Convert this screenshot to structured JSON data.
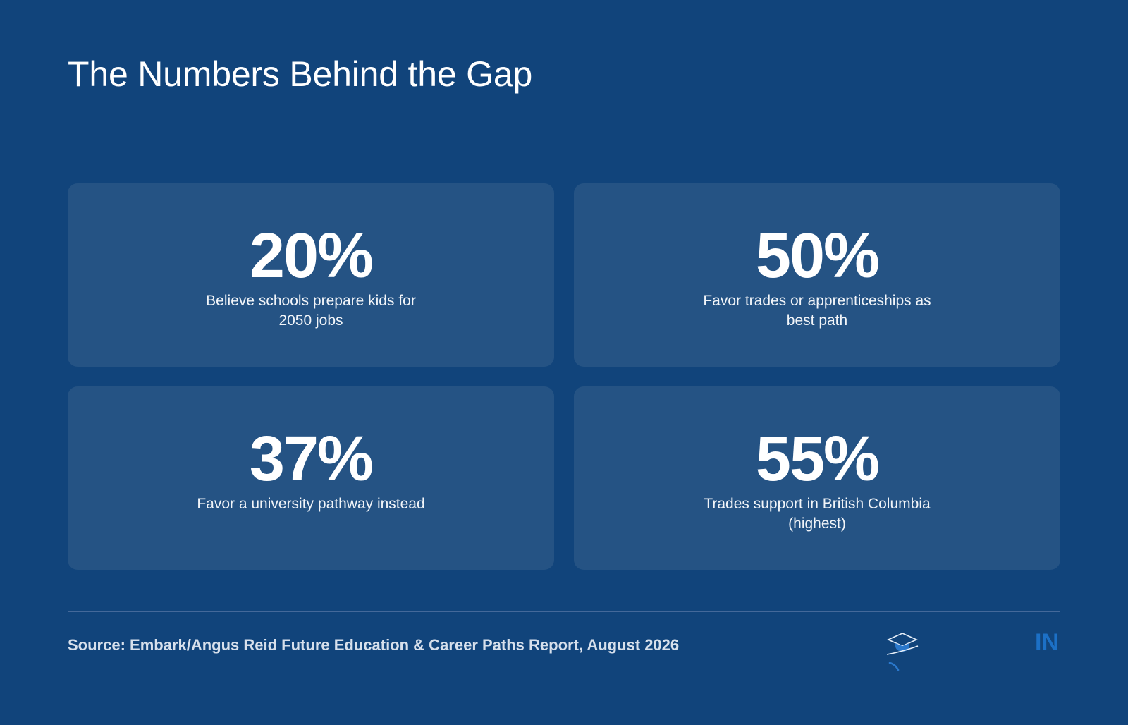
{
  "slide": {
    "title": "The Numbers Behind the Gap"
  },
  "stats": [
    {
      "value": "20%",
      "label": "Believe schools prepare kids for 2050 jobs"
    },
    {
      "value": "50%",
      "label": "Favor trades or apprenticeships as best path"
    },
    {
      "value": "37%",
      "label": "Favor a university pathway instead"
    },
    {
      "value": "55%",
      "label": "Trades support in British Columbia (highest)"
    }
  ],
  "footer": {
    "source": "Source: Embark/Angus Reid Future Education & Career Paths Report, August 2026",
    "logo_icon": "graduation-cap-icon",
    "logo_text": "IN"
  },
  "colors": {
    "background": "#11447b",
    "card": "#255384",
    "logo_accent": "#1c70c6"
  }
}
